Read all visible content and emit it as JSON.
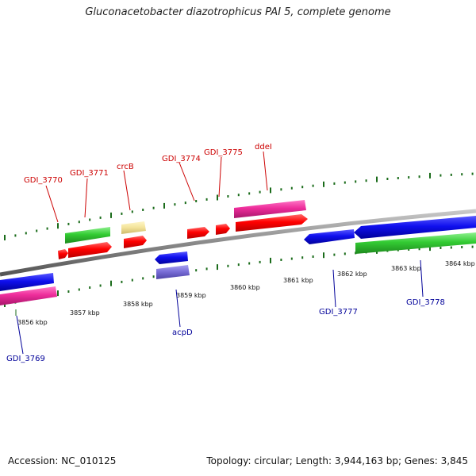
{
  "title": "Gluconacetobacter diazotrophicus PAI 5, complete genome",
  "footer": {
    "accession": "Accession: NC_010125",
    "summary": "Topology: circular; Length: 3,944,163 bp; Genes: 3,845"
  },
  "colors": {
    "forward_label": "#cc0000",
    "reverse_label": "#000099",
    "tick": "#1a6b1a",
    "backbone": "#8a8a8a"
  },
  "scale_labels": [
    "3856 kbp",
    "3857 kbp",
    "3858 kbp",
    "3859 kbp",
    "3860 kbp",
    "3861 kbp",
    "3862 kbp",
    "3863 kbp",
    "3864 kbp"
  ],
  "forward_genes": [
    {
      "label": "GDI_3770"
    },
    {
      "label": "GDI_3771"
    },
    {
      "label": "crcB"
    },
    {
      "label": "GDI_3774"
    },
    {
      "label": "GDI_3775"
    },
    {
      "label": "ddeI"
    }
  ],
  "reverse_genes": [
    {
      "label": "GDI_3769"
    },
    {
      "label": "acpD"
    },
    {
      "label": "GDI_3777"
    },
    {
      "label": "GDI_3778"
    }
  ]
}
